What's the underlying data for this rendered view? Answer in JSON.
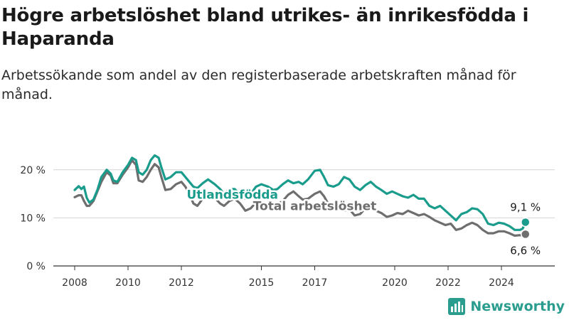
{
  "header": {
    "title": "Högre arbetslöshet bland utrikes- än inrikesfödda i Haparanda",
    "subtitle": "Arbetssökande som andel av den registerbaserade arbetskraften månad för månad."
  },
  "brand": {
    "name": "Newsworthy",
    "icon": "bar-chart-icon",
    "color": "#2a9d8f"
  },
  "chart_data": {
    "type": "line",
    "title": "Högre arbetslöshet bland utrikes- än inrikesfödda i Haparanda",
    "subtitle": "Arbetssökande som andel av den registerbaserade arbetskraften månad för månad.",
    "xlabel": "",
    "ylabel": "",
    "x_ticks": [
      2008,
      2010,
      2012,
      2015,
      2017,
      2020,
      2022,
      2024
    ],
    "y_ticks": [
      0,
      10,
      20
    ],
    "y_tick_labels": [
      "0 %",
      "10 %",
      "20 %"
    ],
    "ylim": [
      0,
      25
    ],
    "xlim": [
      2007.2,
      2026
    ],
    "grid": "horizontal",
    "legend": "inline labels",
    "series": [
      {
        "name": "Utlandsfödda",
        "color": "#1a9c8c",
        "end_label": "9,1 %",
        "points": [
          [
            2008.0,
            15.8
          ],
          [
            2008.15,
            16.6
          ],
          [
            2008.25,
            16.0
          ],
          [
            2008.35,
            16.5
          ],
          [
            2008.45,
            14.2
          ],
          [
            2008.55,
            13.2
          ],
          [
            2008.7,
            13.8
          ],
          [
            2008.85,
            15.8
          ],
          [
            2009.0,
            18.5
          ],
          [
            2009.2,
            20.0
          ],
          [
            2009.35,
            19.2
          ],
          [
            2009.45,
            17.8
          ],
          [
            2009.6,
            17.5
          ],
          [
            2009.8,
            19.5
          ],
          [
            2010.0,
            21.0
          ],
          [
            2010.15,
            22.5
          ],
          [
            2010.3,
            22.0
          ],
          [
            2010.4,
            19.5
          ],
          [
            2010.55,
            19.0
          ],
          [
            2010.7,
            20.0
          ],
          [
            2010.85,
            22.0
          ],
          [
            2011.0,
            23.0
          ],
          [
            2011.15,
            22.5
          ],
          [
            2011.25,
            20.5
          ],
          [
            2011.4,
            18.0
          ],
          [
            2011.6,
            18.5
          ],
          [
            2011.8,
            19.5
          ],
          [
            2012.0,
            19.5
          ],
          [
            2012.15,
            18.5
          ],
          [
            2012.3,
            17.5
          ],
          [
            2012.45,
            16.5
          ],
          [
            2012.6,
            16.2
          ],
          [
            2012.8,
            17.2
          ],
          [
            2013.0,
            18.0
          ],
          [
            2013.25,
            17.0
          ],
          [
            2013.45,
            16.0
          ],
          [
            2013.6,
            15.0
          ],
          [
            2013.8,
            16.0
          ],
          [
            2014.0,
            16.0
          ],
          [
            2014.2,
            14.8
          ],
          [
            2014.4,
            14.0
          ],
          [
            2014.6,
            15.0
          ],
          [
            2014.8,
            16.5
          ],
          [
            2015.0,
            17.0
          ],
          [
            2015.25,
            16.5
          ],
          [
            2015.45,
            15.8
          ],
          [
            2015.6,
            16.0
          ],
          [
            2015.8,
            17.0
          ],
          [
            2016.0,
            17.8
          ],
          [
            2016.2,
            17.2
          ],
          [
            2016.4,
            17.5
          ],
          [
            2016.55,
            17.0
          ],
          [
            2016.75,
            18.0
          ],
          [
            2017.0,
            19.8
          ],
          [
            2017.2,
            20.0
          ],
          [
            2017.35,
            18.5
          ],
          [
            2017.5,
            16.8
          ],
          [
            2017.7,
            16.5
          ],
          [
            2017.9,
            17.0
          ],
          [
            2018.1,
            18.5
          ],
          [
            2018.3,
            18.0
          ],
          [
            2018.5,
            16.5
          ],
          [
            2018.7,
            15.8
          ],
          [
            2018.9,
            16.8
          ],
          [
            2019.1,
            17.5
          ],
          [
            2019.3,
            16.5
          ],
          [
            2019.5,
            15.8
          ],
          [
            2019.7,
            15.0
          ],
          [
            2019.9,
            15.5
          ],
          [
            2020.1,
            15.0
          ],
          [
            2020.3,
            14.5
          ],
          [
            2020.5,
            14.2
          ],
          [
            2020.7,
            14.8
          ],
          [
            2020.9,
            14.0
          ],
          [
            2021.1,
            14.0
          ],
          [
            2021.3,
            12.5
          ],
          [
            2021.5,
            12.0
          ],
          [
            2021.7,
            12.5
          ],
          [
            2021.9,
            11.5
          ],
          [
            2022.1,
            10.5
          ],
          [
            2022.3,
            9.5
          ],
          [
            2022.5,
            10.8
          ],
          [
            2022.7,
            11.2
          ],
          [
            2022.9,
            12.0
          ],
          [
            2023.1,
            11.8
          ],
          [
            2023.3,
            10.8
          ],
          [
            2023.5,
            8.8
          ],
          [
            2023.7,
            8.5
          ],
          [
            2023.9,
            9.0
          ],
          [
            2024.1,
            8.8
          ],
          [
            2024.3,
            8.3
          ],
          [
            2024.5,
            7.5
          ],
          [
            2024.7,
            7.5
          ],
          [
            2024.8,
            7.8
          ],
          [
            2024.9,
            9.1
          ]
        ]
      },
      {
        "name": "Total arbetslöshet",
        "color": "#6e6e6e",
        "end_label": "6,6 %",
        "points": [
          [
            2008.0,
            14.3
          ],
          [
            2008.15,
            14.7
          ],
          [
            2008.25,
            14.7
          ],
          [
            2008.35,
            13.5
          ],
          [
            2008.45,
            12.5
          ],
          [
            2008.55,
            12.5
          ],
          [
            2008.7,
            13.5
          ],
          [
            2008.85,
            15.5
          ],
          [
            2009.0,
            17.5
          ],
          [
            2009.2,
            19.5
          ],
          [
            2009.35,
            18.8
          ],
          [
            2009.45,
            17.2
          ],
          [
            2009.6,
            17.2
          ],
          [
            2009.8,
            19.0
          ],
          [
            2010.0,
            20.5
          ],
          [
            2010.15,
            22.0
          ],
          [
            2010.3,
            21.0
          ],
          [
            2010.4,
            17.8
          ],
          [
            2010.55,
            17.5
          ],
          [
            2010.7,
            18.5
          ],
          [
            2010.85,
            20.0
          ],
          [
            2011.0,
            21.2
          ],
          [
            2011.15,
            20.5
          ],
          [
            2011.25,
            18.5
          ],
          [
            2011.4,
            15.8
          ],
          [
            2011.6,
            16.0
          ],
          [
            2011.8,
            17.0
          ],
          [
            2012.0,
            17.5
          ],
          [
            2012.15,
            16.5
          ],
          [
            2012.3,
            15.0
          ],
          [
            2012.45,
            13.0
          ],
          [
            2012.6,
            12.5
          ],
          [
            2012.8,
            14.0
          ],
          [
            2013.0,
            15.0
          ],
          [
            2013.25,
            14.2
          ],
          [
            2013.45,
            13.0
          ],
          [
            2013.6,
            12.5
          ],
          [
            2013.8,
            13.5
          ],
          [
            2014.0,
            14.0
          ],
          [
            2014.2,
            13.0
          ],
          [
            2014.4,
            11.5
          ],
          [
            2014.6,
            12.0
          ],
          [
            2014.8,
            13.2
          ],
          [
            2015.0,
            14.5
          ],
          [
            2015.25,
            13.8
          ],
          [
            2015.45,
            12.5
          ],
          [
            2015.6,
            12.8
          ],
          [
            2015.8,
            13.5
          ],
          [
            2016.0,
            14.8
          ],
          [
            2016.2,
            15.5
          ],
          [
            2016.4,
            14.5
          ],
          [
            2016.55,
            13.8
          ],
          [
            2016.75,
            14.0
          ],
          [
            2017.0,
            15.0
          ],
          [
            2017.2,
            15.5
          ],
          [
            2017.35,
            14.5
          ],
          [
            2017.5,
            13.0
          ],
          [
            2017.7,
            12.8
          ],
          [
            2017.9,
            12.0
          ],
          [
            2018.1,
            11.5
          ],
          [
            2018.3,
            11.8
          ],
          [
            2018.5,
            10.5
          ],
          [
            2018.7,
            10.8
          ],
          [
            2018.9,
            12.0
          ],
          [
            2019.1,
            12.5
          ],
          [
            2019.3,
            11.5
          ],
          [
            2019.5,
            11.0
          ],
          [
            2019.7,
            10.2
          ],
          [
            2019.9,
            10.5
          ],
          [
            2020.1,
            11.0
          ],
          [
            2020.3,
            10.8
          ],
          [
            2020.5,
            11.5
          ],
          [
            2020.7,
            11.0
          ],
          [
            2020.9,
            10.5
          ],
          [
            2021.1,
            10.8
          ],
          [
            2021.3,
            10.2
          ],
          [
            2021.5,
            9.5
          ],
          [
            2021.7,
            9.0
          ],
          [
            2021.9,
            8.5
          ],
          [
            2022.1,
            8.8
          ],
          [
            2022.3,
            7.5
          ],
          [
            2022.5,
            7.8
          ],
          [
            2022.7,
            8.5
          ],
          [
            2022.9,
            9.0
          ],
          [
            2023.1,
            8.5
          ],
          [
            2023.3,
            7.5
          ],
          [
            2023.5,
            6.8
          ],
          [
            2023.7,
            6.8
          ],
          [
            2023.9,
            7.2
          ],
          [
            2024.1,
            7.2
          ],
          [
            2024.3,
            6.8
          ],
          [
            2024.5,
            6.3
          ],
          [
            2024.7,
            6.4
          ],
          [
            2024.8,
            6.3
          ],
          [
            2024.9,
            6.6
          ]
        ]
      }
    ]
  }
}
